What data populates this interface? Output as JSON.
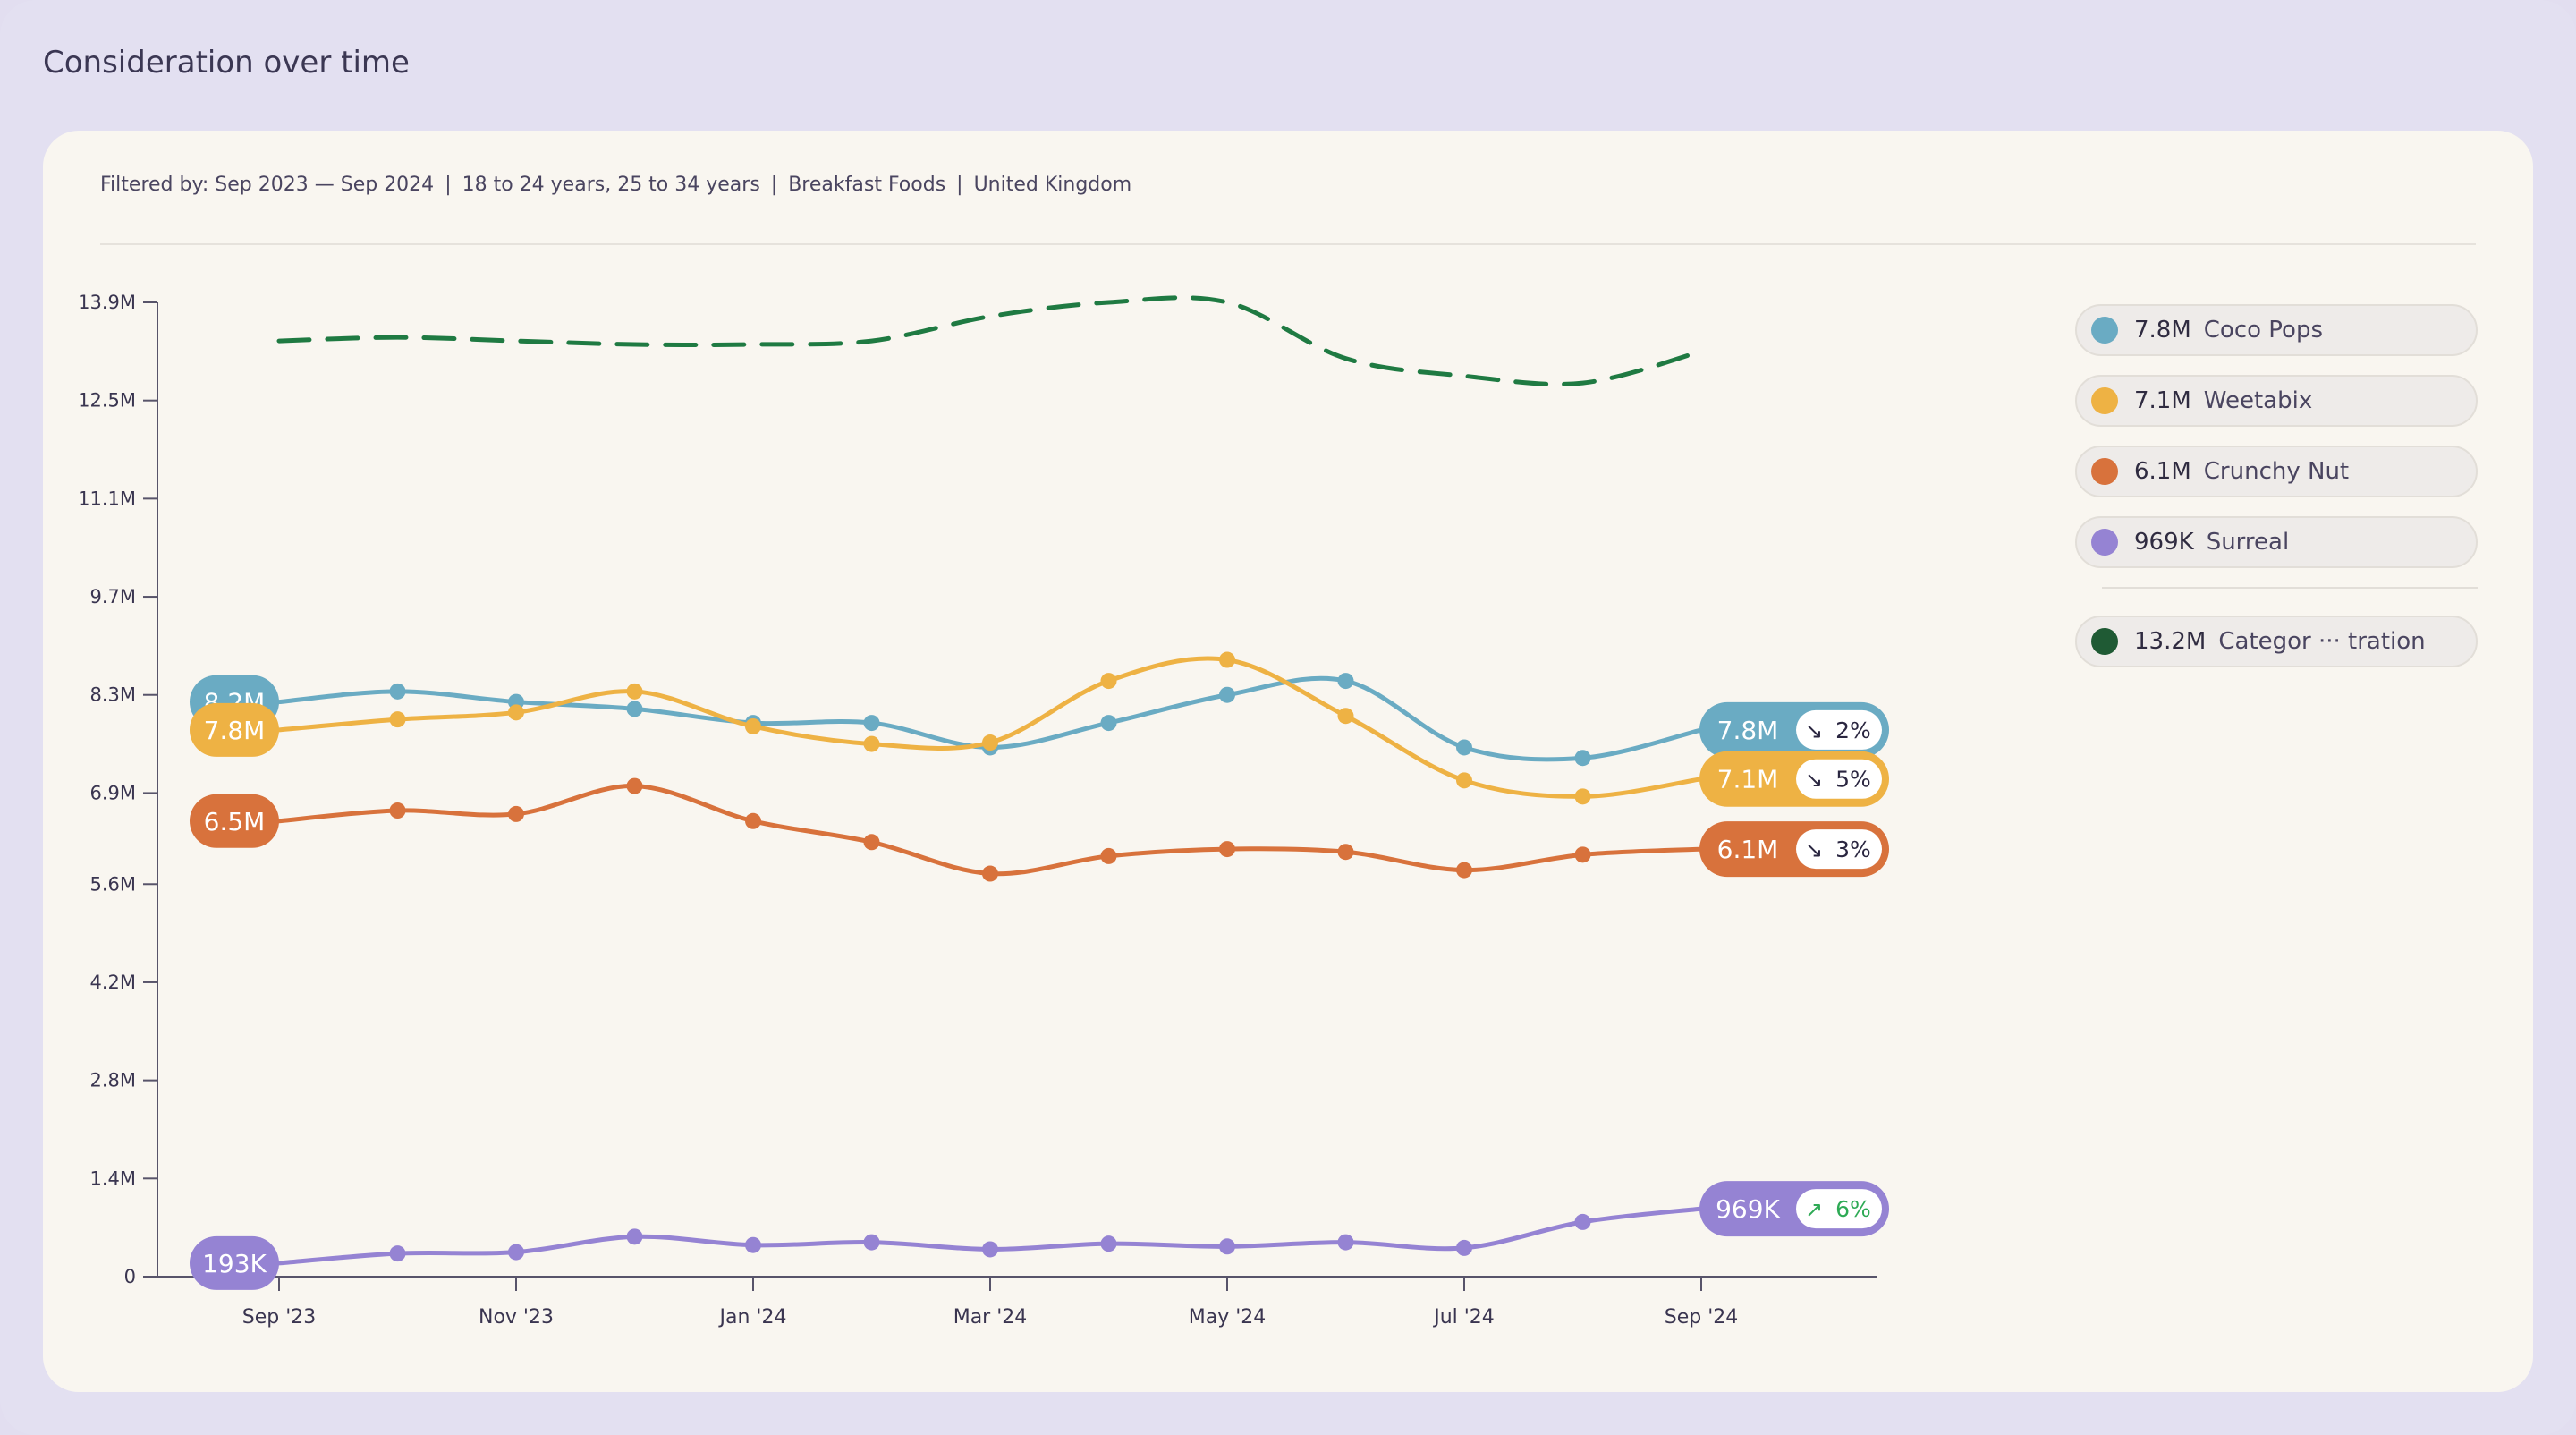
{
  "page_title": "Consideration over time",
  "filters": {
    "label": "Filtered by:",
    "date_range": "Sep 2023 — Sep 2024",
    "ages": "18 to 24 years, 25 to 34 years",
    "category": "Breakfast Foods",
    "region": "United Kingdom",
    "separator": "|"
  },
  "legend": {
    "items": [
      {
        "value": "7.8M",
        "name": "Coco Pops",
        "color": "#6aabc3"
      },
      {
        "value": "7.1M",
        "name": "Weetabix",
        "color": "#eeb244"
      },
      {
        "value": "6.1M",
        "name": "Crunchy Nut",
        "color": "#d8723c"
      },
      {
        "value": "969K",
        "name": "Surreal",
        "color": "#9583d3"
      }
    ],
    "category_item": {
      "value": "13.2M",
      "name": "Categor ··· tration",
      "color": "#1f5a34"
    }
  },
  "chart_data": {
    "type": "line",
    "title": "Consideration over time",
    "x": [
      "Sep '23",
      "Oct '23",
      "Nov '23",
      "Dec '23",
      "Jan '24",
      "Feb '24",
      "Mar '24",
      "Apr '24",
      "May '24",
      "Jun '24",
      "Jul '24",
      "Aug '24",
      "Sep '24"
    ],
    "x_tick_labels": [
      "Sep '23",
      "Nov '23",
      "Jan '24",
      "Mar '24",
      "May '24",
      "Jul '24",
      "Sep '24"
    ],
    "y_ticks": [
      0,
      1.4,
      2.8,
      4.2,
      5.6,
      6.9,
      8.3,
      9.7,
      11.1,
      12.5,
      13.9
    ],
    "y_tick_labels": [
      "0",
      "1.4M",
      "2.8M",
      "4.2M",
      "5.6M",
      "6.9M",
      "8.3M",
      "9.7M",
      "11.1M",
      "12.5M",
      "13.9M"
    ],
    "ylim": [
      0,
      13.9
    ],
    "units": "M",
    "series": [
      {
        "name": "Coco Pops",
        "color": "#6aabc3",
        "dashed": false,
        "markers": true,
        "values": [
          8.2,
          8.35,
          8.2,
          8.1,
          7.9,
          7.9,
          7.55,
          7.9,
          8.3,
          8.5,
          7.55,
          7.4,
          7.8
        ],
        "start_label": "8.2M",
        "end_label": "7.8M",
        "change": {
          "direction": "down",
          "arrow": "↘",
          "text": "2%"
        }
      },
      {
        "name": "Weetabix",
        "color": "#eeb244",
        "dashed": false,
        "markers": true,
        "values": [
          7.8,
          7.95,
          8.05,
          8.35,
          7.85,
          7.6,
          7.62,
          8.5,
          8.8,
          8.0,
          7.08,
          6.85,
          7.1
        ],
        "start_label": "7.8M",
        "end_label": "7.1M",
        "change": {
          "direction": "down",
          "arrow": "↘",
          "text": "5%"
        }
      },
      {
        "name": "Crunchy Nut",
        "color": "#d8723c",
        "dashed": false,
        "markers": true,
        "values": [
          6.5,
          6.65,
          6.6,
          7.0,
          6.5,
          6.2,
          5.75,
          6.0,
          6.1,
          6.06,
          5.8,
          6.02,
          6.1
        ],
        "start_label": "6.5M",
        "end_label": "6.1M",
        "change": {
          "direction": "down",
          "arrow": "↘",
          "text": "3%"
        }
      },
      {
        "name": "Surreal",
        "color": "#9583d3",
        "dashed": false,
        "markers": true,
        "values": [
          0.193,
          0.33,
          0.35,
          0.57,
          0.45,
          0.49,
          0.39,
          0.47,
          0.43,
          0.49,
          0.41,
          0.78,
          0.969
        ],
        "start_label": "193K",
        "end_label": "969K",
        "change": {
          "direction": "up",
          "arrow": "↗",
          "text": "6%"
        }
      },
      {
        "name": "Category consideration",
        "color": "#1f7a42",
        "dashed": true,
        "markers": false,
        "values": [
          13.35,
          13.4,
          13.35,
          13.3,
          13.3,
          13.35,
          13.7,
          13.9,
          13.9,
          13.1,
          12.85,
          12.75,
          13.2
        ]
      }
    ]
  }
}
